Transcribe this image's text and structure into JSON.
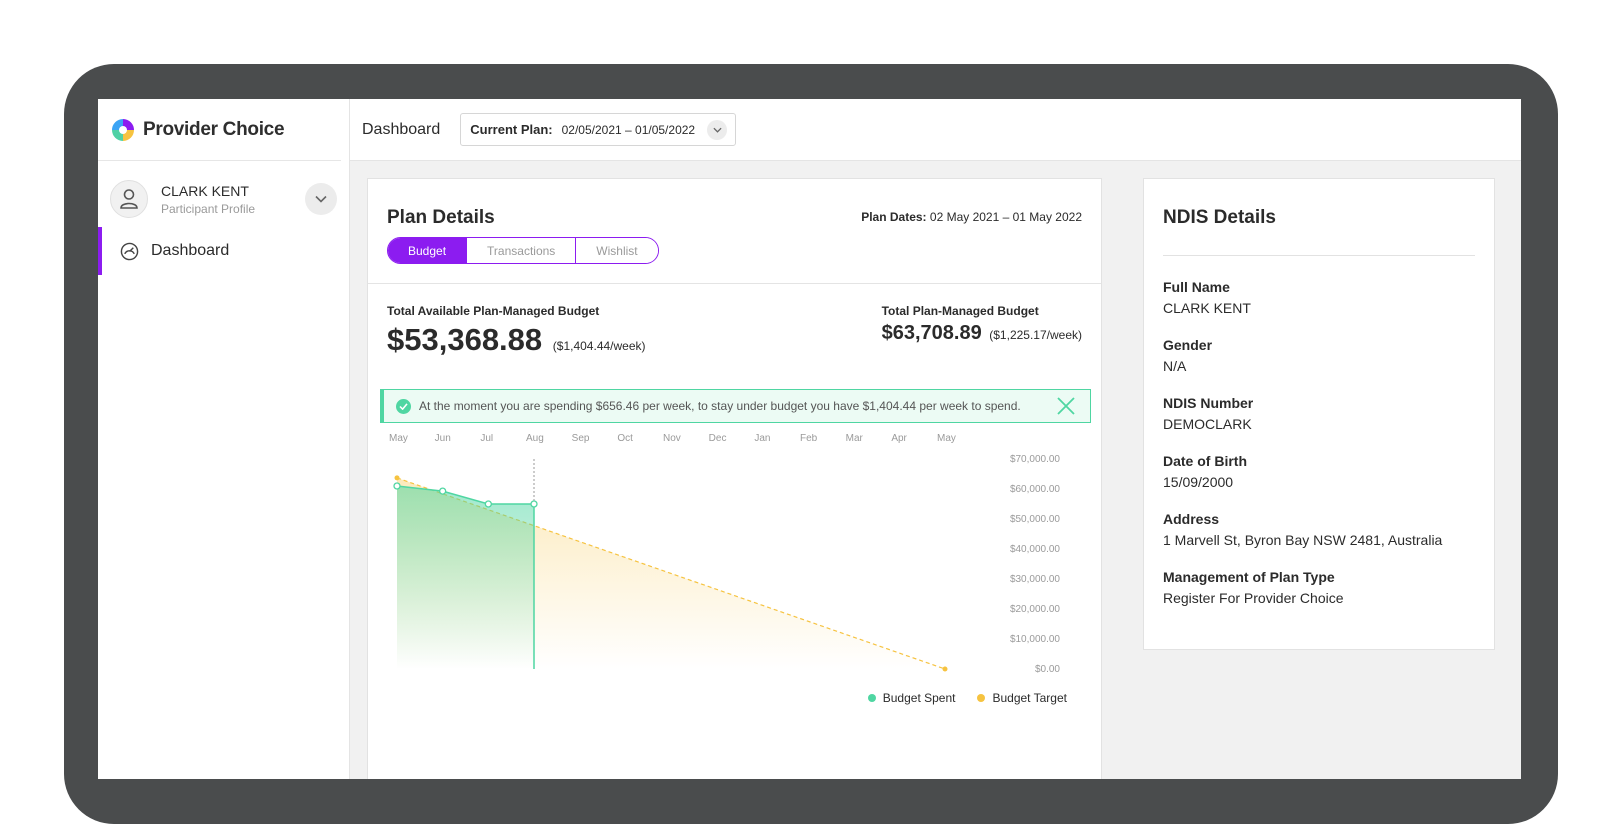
{
  "brand": {
    "name": "Provider Choice"
  },
  "profile": {
    "name": "CLARK KENT",
    "subtitle": "Participant Profile"
  },
  "nav": {
    "items": [
      {
        "label": "Dashboard",
        "icon": "dashboard-gauge-icon"
      }
    ]
  },
  "topbar": {
    "title": "Dashboard",
    "plan_select": {
      "label": "Current Plan:",
      "value": "02/05/2021 – 01/05/2022"
    }
  },
  "plan": {
    "title": "Plan Details",
    "dates_label": "Plan Dates:",
    "dates_value": "02 May 2021 – 01 May 2022",
    "tabs": [
      {
        "label": "Budget",
        "active": true
      },
      {
        "label": "Transactions",
        "active": false
      },
      {
        "label": "Wishlist",
        "active": false
      }
    ],
    "available": {
      "label": "Total Available Plan-Managed Budget",
      "amount": "$53,368.88",
      "weekly": "($1,404.44/week)"
    },
    "total": {
      "label": "Total Plan-Managed Budget",
      "amount": "$63,708.89",
      "weekly": "($1,225.17/week)"
    },
    "alert": "At the moment you are spending $656.46 per week, to stay under budget you have $1,404.44 per week to spend."
  },
  "colors": {
    "accent": "#8c1cf0",
    "spent": "#4fd6a2",
    "target": "#f6c340"
  },
  "chart_data": {
    "type": "area",
    "x_ticks": [
      "May",
      "Jun",
      "Jul",
      "Aug",
      "Sep",
      "Oct",
      "Nov",
      "Dec",
      "Jan",
      "Feb",
      "Mar",
      "Apr",
      "May"
    ],
    "y_ticks": [
      "$70,000.00",
      "$60,000.00",
      "$50,000.00",
      "$40,000.00",
      "$30,000.00",
      "$20,000.00",
      "$10,000.00",
      "$0.00"
    ],
    "ylim": [
      0,
      70000
    ],
    "series": [
      {
        "name": "Budget Spent",
        "points": [
          {
            "x": 0,
            "y": 61000
          },
          {
            "x": 1,
            "y": 59300
          },
          {
            "x": 2,
            "y": 55000
          },
          {
            "x": 3,
            "y": 55000
          }
        ]
      },
      {
        "name": "Budget Target",
        "points": [
          {
            "x": 0,
            "y": 63700
          },
          {
            "x": 12,
            "y": 0
          }
        ]
      }
    ],
    "legend": "bottom-right"
  }
}
